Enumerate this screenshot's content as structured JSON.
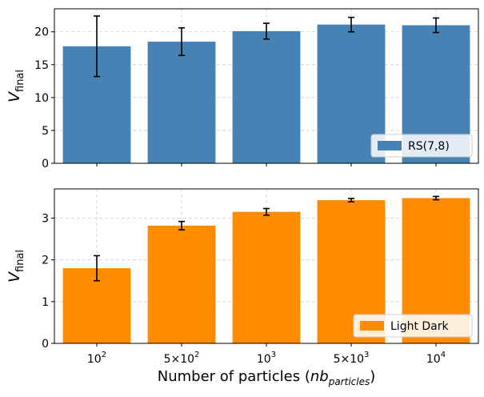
{
  "chart_data": {
    "type": "bar",
    "shared_x": {
      "categories": [
        "10^2",
        "5×10^2",
        "10^3",
        "5×10^3",
        "10^4"
      ],
      "tick_labels": [
        {
          "base": "10",
          "sup": "2"
        },
        {
          "base": "5×10",
          "sup": "2"
        },
        {
          "base": "10",
          "sup": "3"
        },
        {
          "base": "5×10",
          "sup": "3"
        },
        {
          "base": "10",
          "sup": "4"
        }
      ],
      "xlabel_main": "Number of particles (",
      "xlabel_math": "nb",
      "xlabel_sub": "particles",
      "xlabel_close": ")"
    },
    "panels": [
      {
        "series_name": "RS(7,8)",
        "color": "#4682b4",
        "values": [
          17.8,
          18.5,
          20.1,
          21.1,
          21.0
        ],
        "errors": [
          4.6,
          2.1,
          1.2,
          1.1,
          1.1
        ],
        "ylim": [
          0,
          23.5
        ],
        "yticks": [
          0,
          5,
          10,
          15,
          20
        ],
        "ylabel_main": "V",
        "ylabel_sub": "final",
        "legend_loc": "lower right"
      },
      {
        "series_name": "Light Dark",
        "color": "#ff8c00",
        "values": [
          1.8,
          2.82,
          3.15,
          3.43,
          3.48
        ],
        "errors": [
          0.3,
          0.1,
          0.08,
          0.04,
          0.04
        ],
        "ylim": [
          0,
          3.7
        ],
        "yticks": [
          0,
          1,
          2,
          3
        ],
        "ylabel_main": "V",
        "ylabel_sub": "final",
        "legend_loc": "lower right"
      }
    ]
  }
}
